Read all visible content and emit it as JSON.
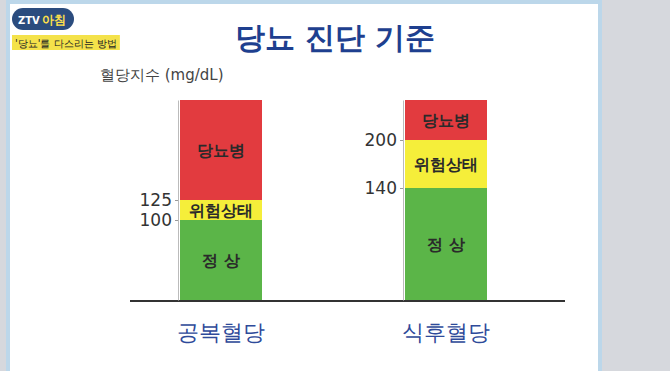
{
  "header": {
    "channel": "ZTV",
    "program": "아침",
    "caption": "'당뇨'를 다스리는 방법"
  },
  "title": "당뇨 진단 기준",
  "chart_data": [
    {
      "type": "bar",
      "stacked": true,
      "ylabel": "혈당지수 (mg/dL)",
      "categories": [
        "공복혈당"
      ],
      "series": [
        {
          "name": "정 상",
          "color": "#5bb548",
          "values": [
            100
          ]
        },
        {
          "name": "위험상태",
          "color": "#f5ee3a",
          "values": [
            25
          ]
        },
        {
          "name": "당뇨병",
          "color": "#e23b3f",
          "values": [
            125
          ]
        }
      ],
      "ylim": [
        0,
        250
      ],
      "yticks": [
        100,
        125
      ]
    },
    {
      "type": "bar",
      "stacked": true,
      "categories": [
        "식후혈당"
      ],
      "series": [
        {
          "name": "정 상",
          "color": "#5bb548",
          "values": [
            140
          ]
        },
        {
          "name": "위험상태",
          "color": "#f5ee3a",
          "values": [
            60
          ]
        },
        {
          "name": "당뇨병",
          "color": "#e23b3f",
          "values": [
            50
          ]
        }
      ],
      "ylim": [
        0,
        250
      ],
      "yticks": [
        140,
        200
      ]
    }
  ]
}
